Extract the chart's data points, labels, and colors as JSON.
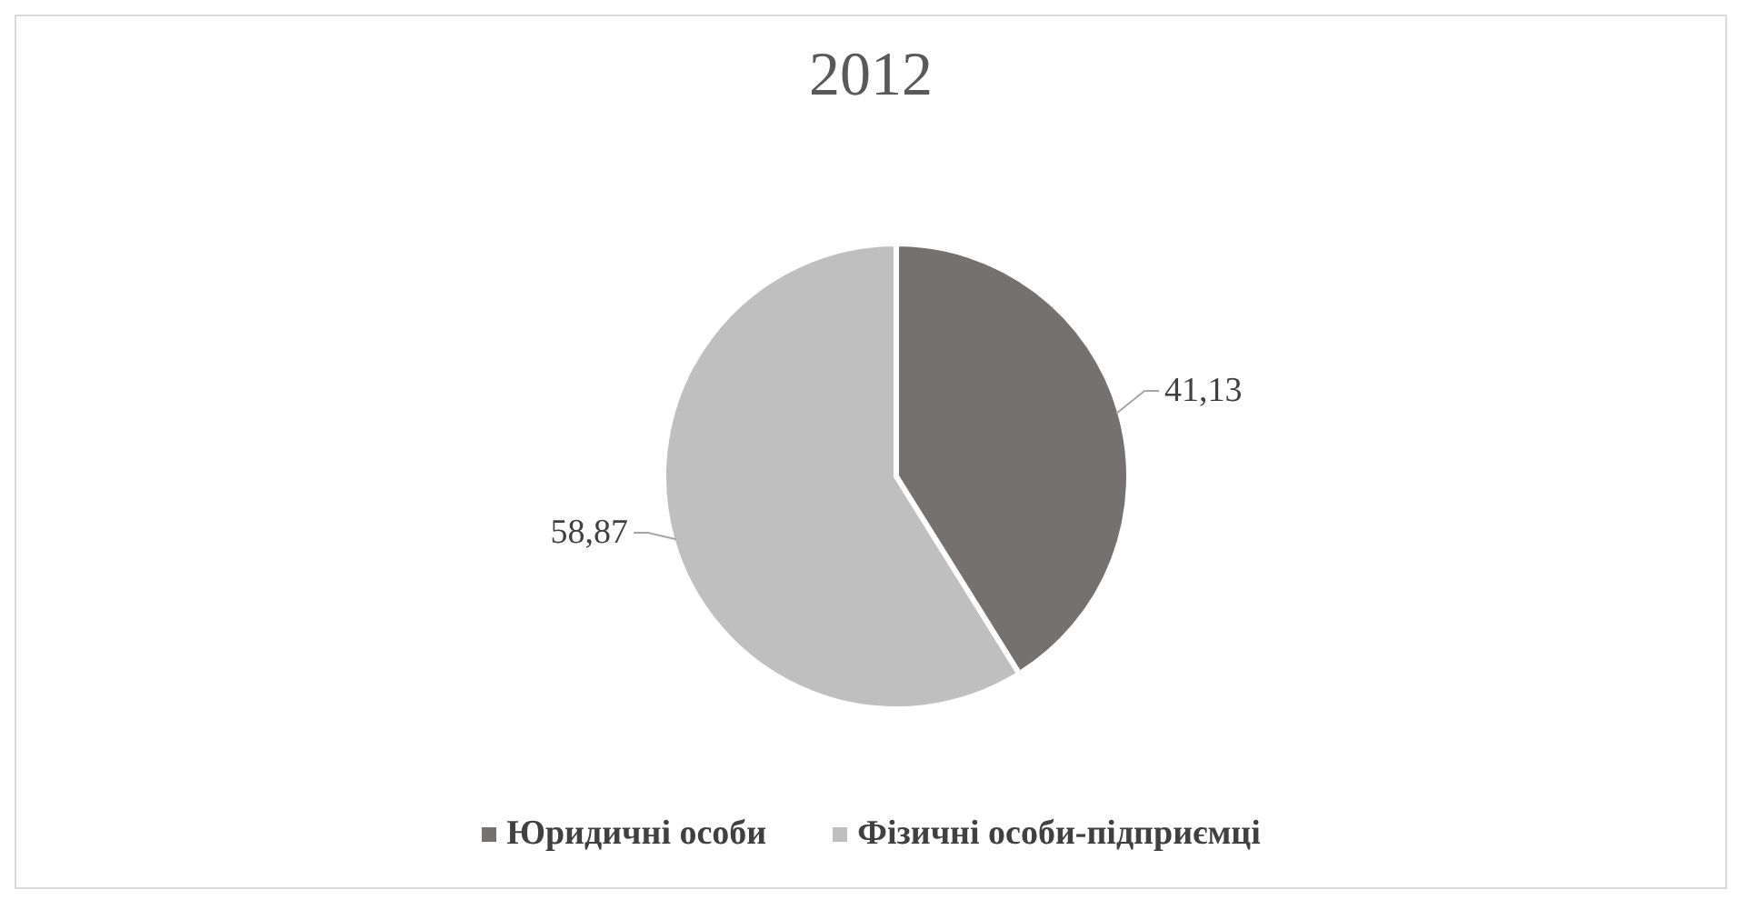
{
  "chart_data": {
    "type": "pie",
    "title": "2012",
    "categories": [
      "Юридичні особи",
      "Фізичні особи-підприємці"
    ],
    "values": [
      41.13,
      58.87
    ],
    "colors": [
      "#767171",
      "#bfbfbf"
    ],
    "value_labels": [
      "41,13",
      "58,87"
    ],
    "legend": "bottom"
  }
}
